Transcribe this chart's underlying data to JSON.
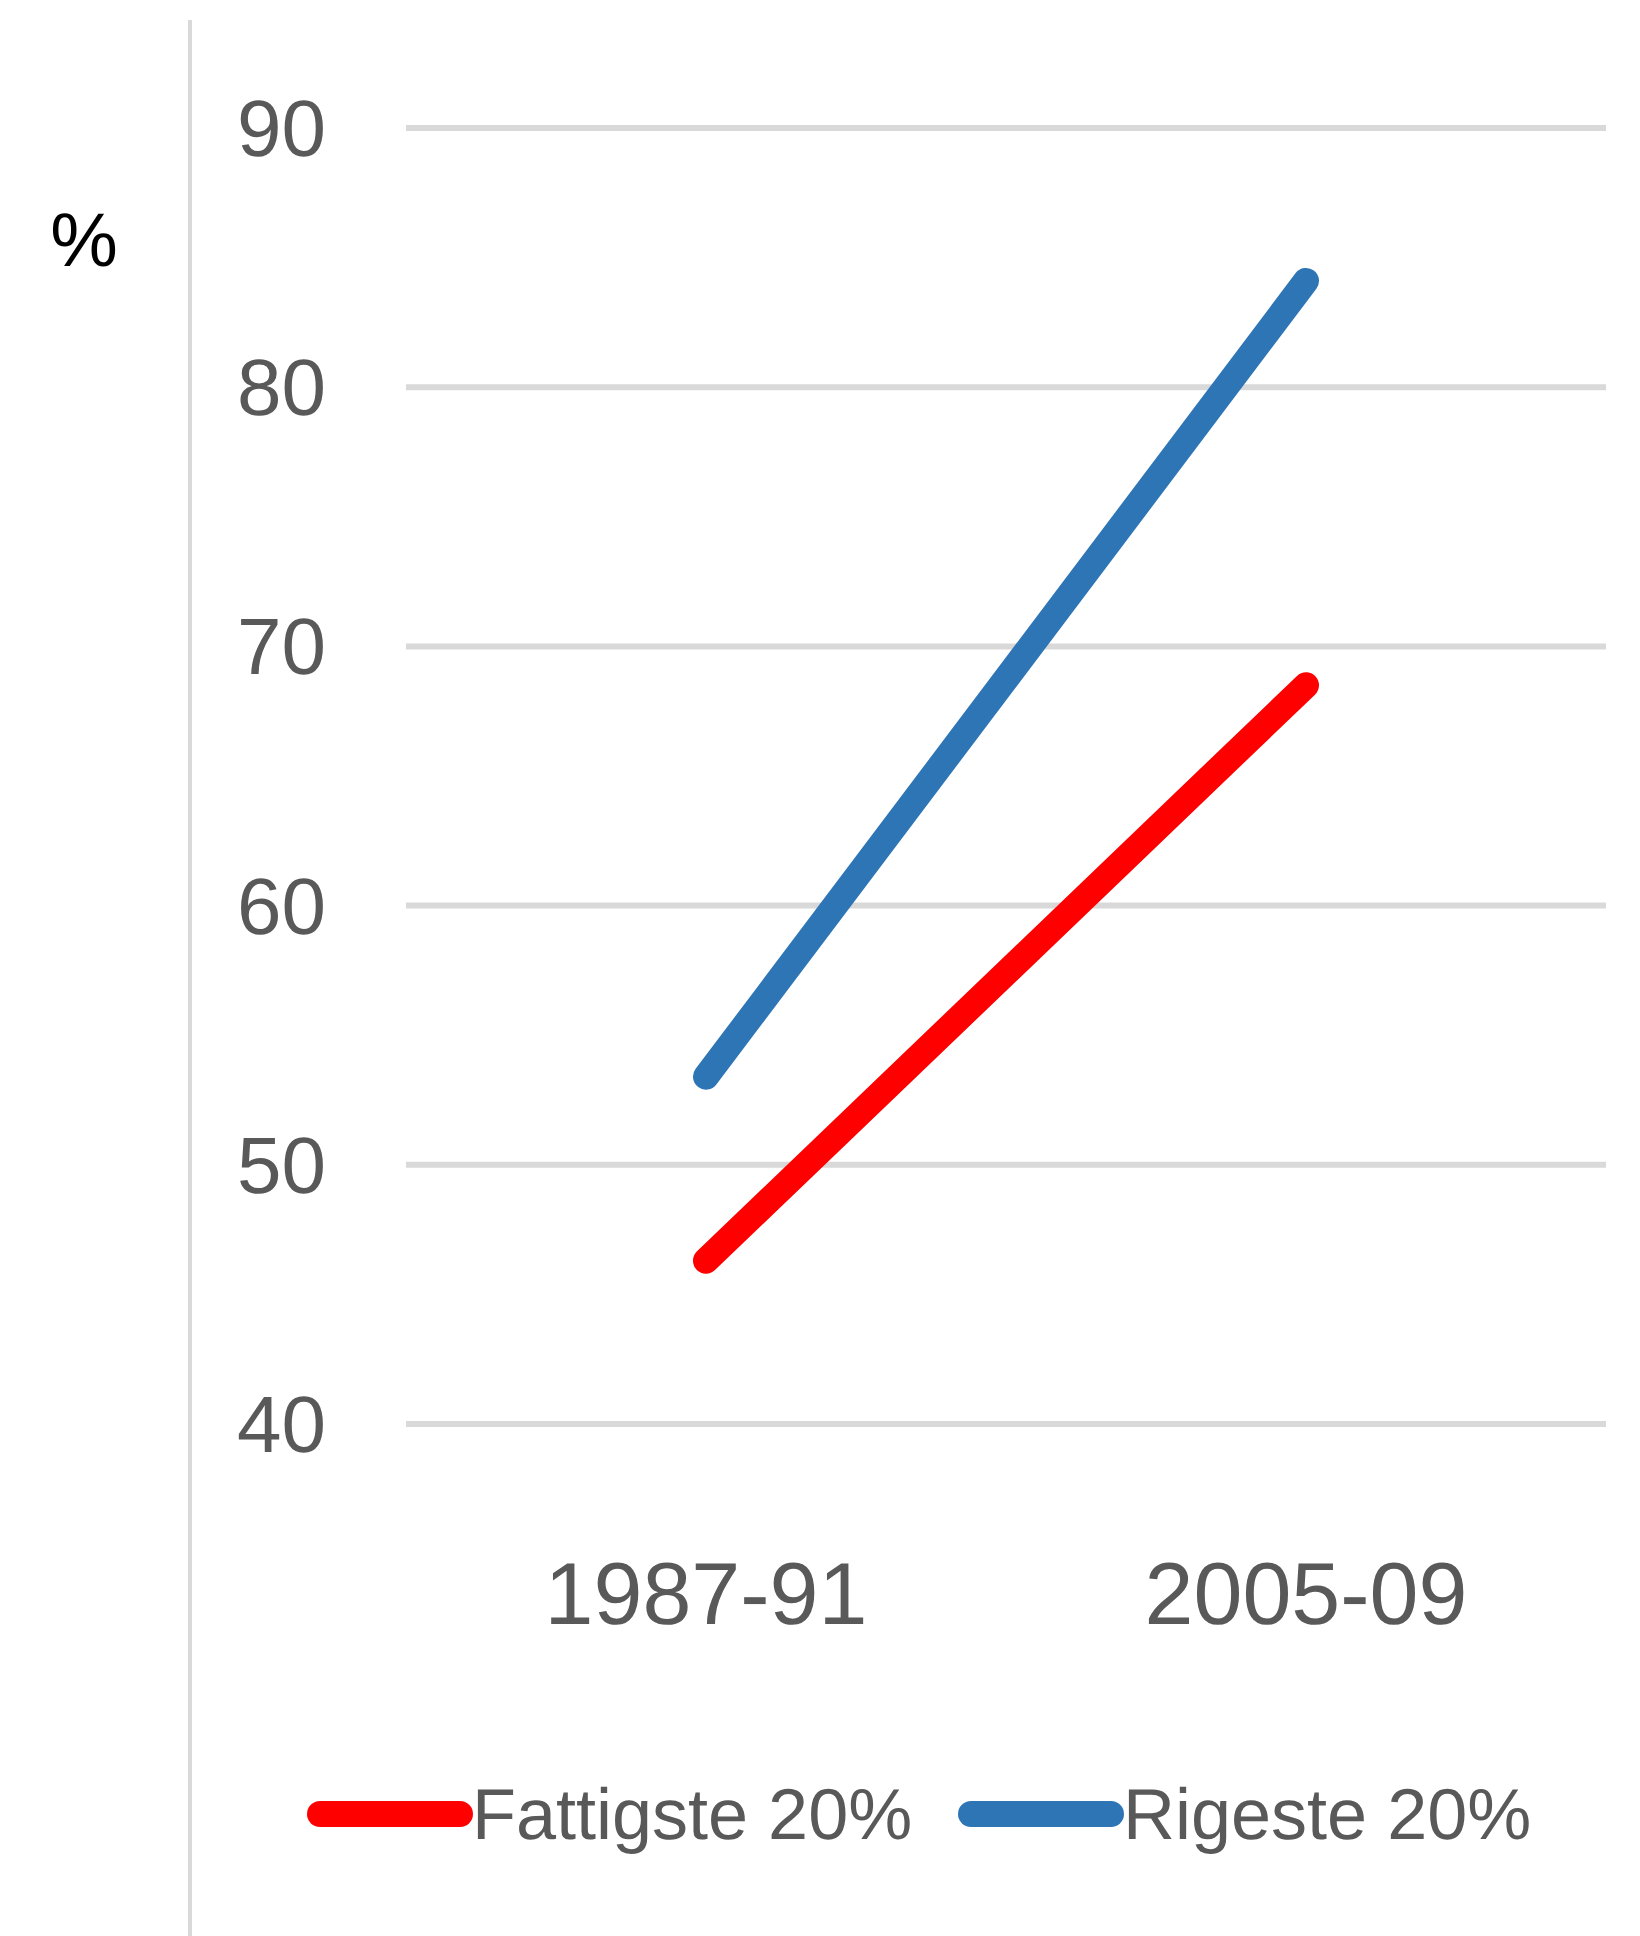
{
  "chart_data": {
    "type": "line",
    "ylabel": "%",
    "categories": [
      "1987-91",
      "2005-09"
    ],
    "series": [
      {
        "name": "Fattigste 20%",
        "color": "#ff0000",
        "values": [
          46.3,
          68.5
        ]
      },
      {
        "name": "Rigeste 20%",
        "color": "#2e75b6",
        "values": [
          53.4,
          84.1
        ]
      }
    ],
    "ylim": [
      40,
      90
    ],
    "yticks": [
      40,
      50,
      60,
      70,
      80,
      90
    ],
    "grid": "y",
    "legend": "bottom",
    "marker": "none",
    "line_style": "solid"
  }
}
